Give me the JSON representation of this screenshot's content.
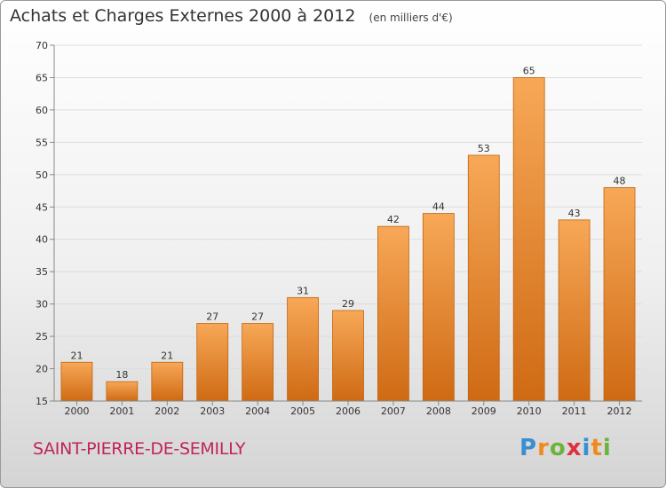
{
  "header": {
    "title": "Achats et Charges Externes 2000 à 2012",
    "unit": "(en milliers d'€)"
  },
  "location": "SAINT-PIERRE-DE-SEMILLY",
  "brand": {
    "letters": [
      "P",
      "r",
      "o",
      "x",
      "i",
      "t",
      "i"
    ],
    "colors": [
      "#3a8fd0",
      "#f08a1c",
      "#6cb33e",
      "#e03040",
      "#3a8fd0",
      "#f08a1c",
      "#6cb33e"
    ]
  },
  "colors": {
    "bar_light": "#f7a857",
    "bar_dark": "#cf6a14",
    "bar_edge": "#c26310",
    "grid": "#dddddd",
    "axis": "#888888"
  },
  "chart_data": {
    "type": "bar",
    "title": "Achats et Charges Externes 2000 à 2012",
    "subtitle": "(en milliers d'€)",
    "categories": [
      "2000",
      "2001",
      "2002",
      "2003",
      "2004",
      "2005",
      "2006",
      "2007",
      "2008",
      "2009",
      "2010",
      "2011",
      "2012"
    ],
    "values": [
      21,
      18,
      21,
      27,
      27,
      31,
      29,
      42,
      44,
      53,
      65,
      43,
      48
    ],
    "ylim": [
      15,
      70
    ],
    "yticks": [
      15,
      20,
      25,
      30,
      35,
      40,
      45,
      50,
      55,
      60,
      65,
      70
    ],
    "grid": true,
    "legend": "none"
  }
}
